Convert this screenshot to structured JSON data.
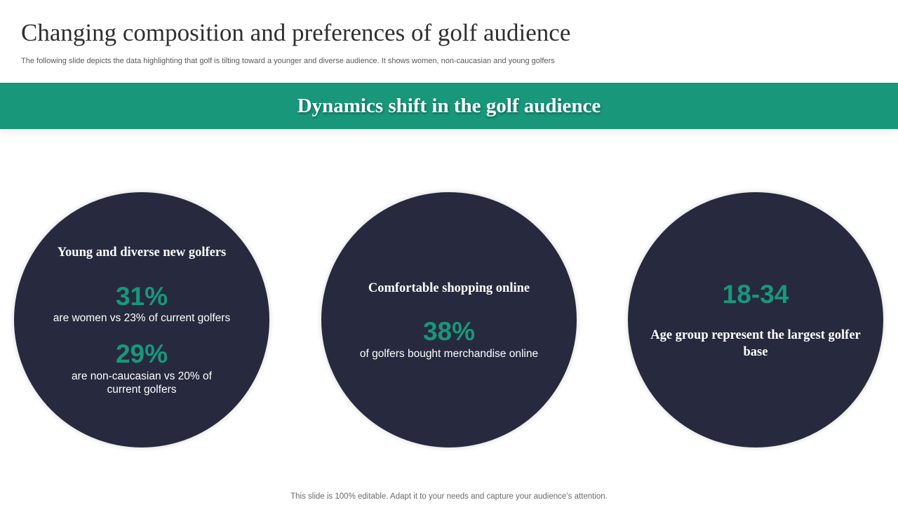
{
  "slide": {
    "title": "Changing composition and preferences of golf audience",
    "subtitle": "The following slide depicts the data highlighting that golf is tilting toward a younger and diverse audience. It shows women, non-caucasian and young golfers",
    "banner": "Dynamics shift in the golf audience",
    "footer": "This slide is 100% editable. Adapt it to your needs and capture your audience’s attention."
  },
  "colors": {
    "accent": "#18977b",
    "circle": "#272a3e",
    "title": "#2f2f2f",
    "text_on_dark": "#ffffff"
  },
  "circles": [
    {
      "heading": "Young and diverse new golfers",
      "stats": [
        {
          "value": "31%",
          "description": "are women vs 23% of current golfers"
        },
        {
          "value": "29%",
          "description": "are non-caucasian vs 20% of current golfers"
        }
      ]
    },
    {
      "heading": "Comfortable shopping online",
      "stats": [
        {
          "value": "38%",
          "description": "of golfers bought merchandise online"
        }
      ]
    },
    {
      "heading": "Age group represent the largest golfer base",
      "stats": [
        {
          "value": "18-34"
        }
      ]
    }
  ]
}
